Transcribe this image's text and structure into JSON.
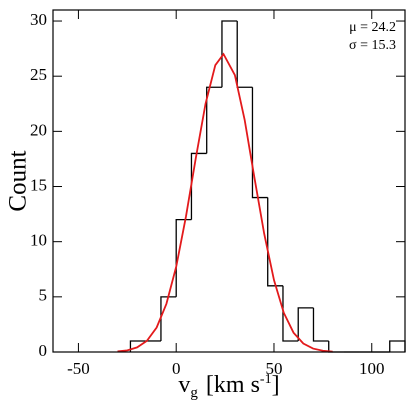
{
  "chart_data": {
    "type": "histogram",
    "ylabel": "Count",
    "xlabel": [
      "v",
      "g",
      "[km s",
      "-1",
      "]"
    ],
    "annotations": [
      "μ = 24.2",
      "σ = 15.3"
    ],
    "bins": [
      -23.4,
      -15.6,
      -7.8,
      0,
      7.8,
      15.6,
      23.4,
      31.2,
      39,
      46.8,
      54.6,
      62.4,
      70.2,
      78,
      85.8,
      93.6,
      101.4,
      109.2,
      117
    ],
    "values": [
      1,
      1,
      5,
      12,
      18,
      24,
      30,
      24,
      14,
      6,
      1,
      4,
      1,
      0,
      0,
      0,
      0,
      1
    ],
    "color": "#000000",
    "fit": {
      "color": "#e31a1c",
      "x": [
        -30,
        -25,
        -20,
        -15,
        -10,
        -5,
        0,
        5,
        10,
        15,
        20,
        24.2,
        30,
        35,
        40,
        45,
        50,
        55,
        60,
        65,
        70,
        75,
        80
      ],
      "values": [
        0.05,
        0.15,
        0.42,
        1.01,
        2.22,
        4.37,
        7.73,
        12.29,
        17.55,
        22.5,
        26.0,
        27,
        25.1,
        21.05,
        15.8,
        10.72,
        6.52,
        3.56,
        1.75,
        0.77,
        0.31,
        0.11,
        0.03
      ]
    },
    "xlim": [
      -63,
      117
    ],
    "ylim": [
      0,
      31
    ],
    "xticks": [
      -50,
      0,
      50,
      100
    ],
    "yticks": [
      0,
      5,
      10,
      15,
      20,
      25,
      30
    ]
  }
}
